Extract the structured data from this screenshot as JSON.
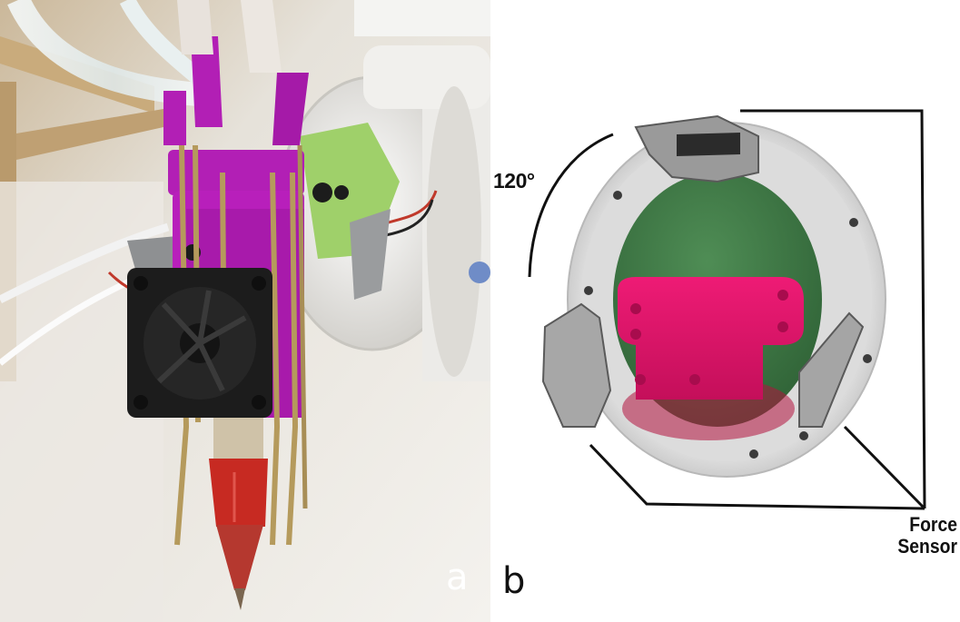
{
  "panels": {
    "a": {
      "letter": "a"
    },
    "b": {
      "letter": "b"
    }
  },
  "annotations": {
    "angle_label": "120°",
    "force_sensor_line1": "Force",
    "force_sensor_line2": "Sensor"
  },
  "colors": {
    "magenta_print": "#b21fb5",
    "pink_mount": "#e0146a",
    "green_plate": "#3f7a45",
    "light_green_part": "#9fd06a",
    "housing_white": "#e8e6e2",
    "fan_black": "#1c1c1c",
    "nozzle_red": "#c72a22",
    "brass_rod": "#b59a5c"
  }
}
